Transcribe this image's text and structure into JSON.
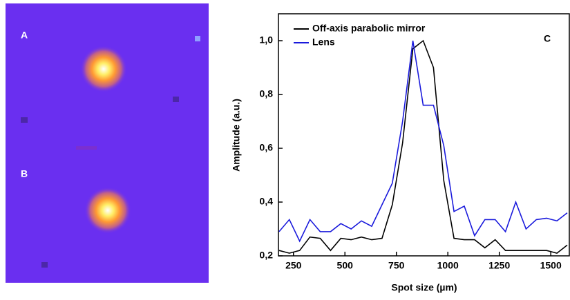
{
  "image_labels": [
    "A",
    "B"
  ],
  "chart_data": {
    "type": "line",
    "panel_label": "C",
    "x_label": "Spot size (µm)",
    "y_label": "Amplitude (a.u.)",
    "x": [
      180,
      230,
      280,
      330,
      380,
      430,
      480,
      530,
      580,
      630,
      680,
      730,
      780,
      830,
      880,
      930,
      980,
      1030,
      1080,
      1130,
      1180,
      1230,
      1280,
      1330,
      1380,
      1430,
      1480,
      1530,
      1580
    ],
    "series": [
      {
        "name": "Off-axis parabolic mirror",
        "color": "#000000",
        "values": [
          0.22,
          0.21,
          0.22,
          0.27,
          0.265,
          0.22,
          0.265,
          0.26,
          0.27,
          0.26,
          0.265,
          0.39,
          0.62,
          0.97,
          1.0,
          0.9,
          0.48,
          0.265,
          0.26,
          0.26,
          0.23,
          0.26,
          0.22,
          0.22,
          0.22,
          0.22,
          0.22,
          0.21,
          0.24
        ]
      },
      {
        "name": "Lens",
        "color": "#1a1adc",
        "values": [
          0.29,
          0.335,
          0.255,
          0.335,
          0.29,
          0.29,
          0.32,
          0.3,
          0.33,
          0.31,
          0.39,
          0.47,
          0.7,
          1.0,
          0.76,
          0.76,
          0.61,
          0.365,
          0.385,
          0.275,
          0.335,
          0.335,
          0.29,
          0.4,
          0.3,
          0.335,
          0.34,
          0.33,
          0.36
        ]
      }
    ],
    "xlim": [
      177,
      1590
    ],
    "ylim": [
      0.2,
      1.1
    ],
    "xticks": [
      250,
      500,
      750,
      1000,
      1250,
      1500
    ],
    "yticks": [
      {
        "value": 0.2,
        "label": "0,2"
      },
      {
        "value": 0.4,
        "label": "0,4"
      },
      {
        "value": 0.6,
        "label": "0,6"
      },
      {
        "value": 0.8,
        "label": "0,8"
      },
      {
        "value": 1.0,
        "label": "1,0"
      }
    ],
    "legend": "upper left"
  }
}
